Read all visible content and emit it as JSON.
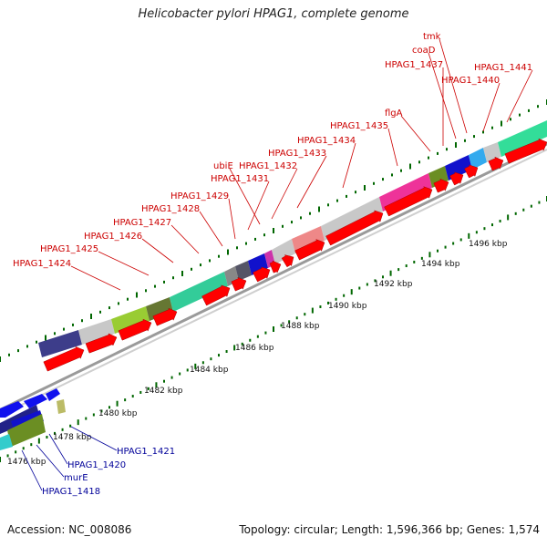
{
  "title": "Helicobacter pylori HPAG1, complete genome",
  "footer": {
    "accession": "Accession: NC_008086",
    "summary": "Topology: circular; Length: 1,596,366 bp; Genes: 1,574"
  },
  "colors": {
    "forward_strand_gene": "#ff0000",
    "reverse_strand_gene": "#0000ff",
    "forward_label": "#cc0000",
    "reverse_label": "#000099",
    "tick": "#006600"
  },
  "scale_ticks": [
    "1476 kbp",
    "1478 kbp",
    "1480 kbp",
    "1482 kbp",
    "1484 kbp",
    "1486 kbp",
    "1488 kbp",
    "1490 kbp",
    "1492 kbp",
    "1494 kbp",
    "1496 kbp"
  ],
  "forward_labels": [
    "HPAG1_1424",
    "HPAG1_1425",
    "HPAG1_1426",
    "HPAG1_1427",
    "HPAG1_1428",
    "HPAG1_1429",
    "HPAG1_1431",
    "ubiE",
    "HPAG1_1432",
    "HPAG1_1433",
    "HPAG1_1434",
    "HPAG1_1435",
    "flgA",
    "HPAG1_1437",
    "coaD",
    "tmk",
    "HPAG1_1440",
    "HPAG1_1441"
  ],
  "reverse_labels": [
    "HPAG1_1418",
    "murE",
    "HPAG1_1420",
    "HPAG1_1421"
  ]
}
